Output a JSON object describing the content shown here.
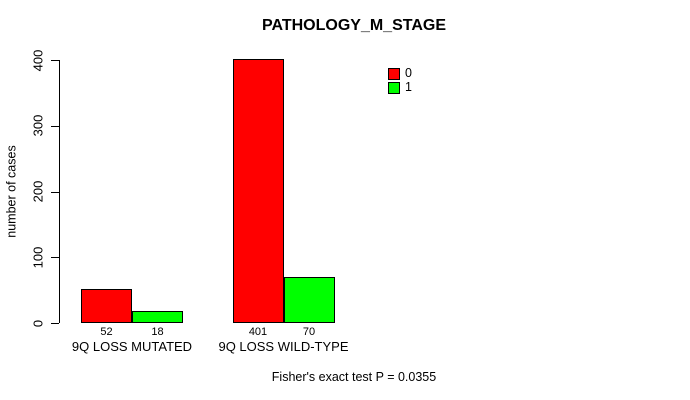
{
  "chart_data": {
    "type": "bar",
    "grouped": true,
    "title": "PATHOLOGY_M_STAGE",
    "xlabel": "",
    "ylabel": "number of cases",
    "categories": [
      "9Q LOSS MUTATED",
      "9Q LOSS WILD-TYPE"
    ],
    "series": [
      {
        "name": "0",
        "color": "#FF0000",
        "values": [
          52,
          401
        ]
      },
      {
        "name": "1",
        "color": "#00FF00",
        "values": [
          18,
          70
        ]
      }
    ],
    "ylim": [
      0,
      400
    ],
    "yticks": [
      0,
      100,
      200,
      300,
      400
    ],
    "grid": false,
    "legend_position": "top-right-inside",
    "annotation": "Fisher's exact test P = 0.0355"
  },
  "colors": {
    "background": "#FFFFFF",
    "axis": "#000000",
    "text": "#000000",
    "bar_border": "#000000"
  }
}
